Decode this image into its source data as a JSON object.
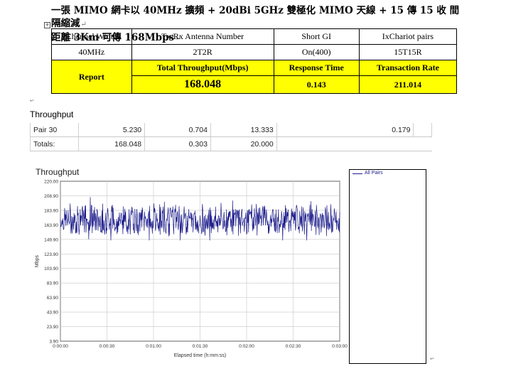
{
  "doc": {
    "title_line1": "一張 MIMO 網卡以 40MHz 擴頻 + 20dBi 5GHz 雙極化 MIMO 天線 + 15 傳 15 收 間隔縮減",
    "title_line2": "距離 3Km 可傳 168Mbps",
    "para_mark": "↵",
    "table_anchor": "+"
  },
  "spec_table": {
    "headers": [
      "Channel Width",
      "Tx/Rx Antenna Number",
      "Short GI",
      "IxChariot pairs"
    ],
    "values": [
      "40MHz",
      "2T2R",
      "On(400)",
      "15T15R"
    ],
    "report_label": "Report",
    "metric_headers": [
      "Total Throughput(Mbps)",
      "Response Time",
      "Transaction Rate"
    ],
    "metric_values": [
      "168.048",
      "0.143",
      "211.014"
    ]
  },
  "throughput_section": {
    "title": "Throughput",
    "rows": [
      [
        "Pair 30",
        "5.230",
        "0.704",
        "13.333",
        "0.179"
      ],
      [
        "Totals:",
        "168.048",
        "0.303",
        "20.000",
        ""
      ]
    ]
  },
  "chart_data": {
    "type": "line",
    "title": "Throughput",
    "xlabel": "Elapsed time (h:mm:ss)",
    "ylabel": "Mbps",
    "y_ticks": [
      "220.00",
      "208.90",
      "183.90",
      "163.90",
      "149.90",
      "123.90",
      "103.90",
      "83.90",
      "63.90",
      "43.90",
      "23.90",
      "3.90"
    ],
    "x_ticks": [
      "0:00:00",
      "0:00:30",
      "0:01:00",
      "0:01:30",
      "0:02:00",
      "0:02:30",
      "0:03:00"
    ],
    "ylim": [
      3.9,
      220.0
    ],
    "xlim_seconds": [
      0,
      180
    ],
    "series": [
      {
        "name": "All Pairs",
        "color": "#1a1a8a",
        "mean": 168.0,
        "band": [
          140,
          200
        ]
      }
    ],
    "legend": "right"
  }
}
